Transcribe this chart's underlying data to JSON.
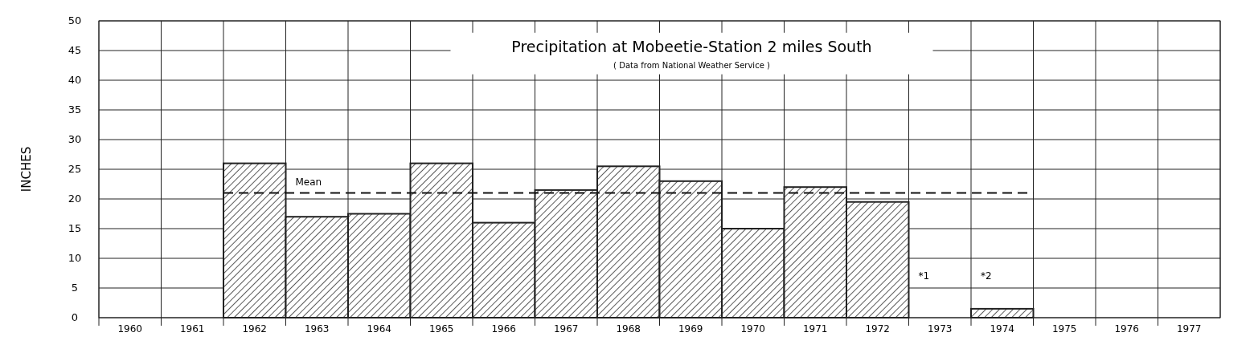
{
  "chart_data": {
    "type": "bar",
    "title": "Precipitation at Mobeetie-Station 2 miles South",
    "subtitle": "( Data from National Weather Service )",
    "ylabel": "INCHES",
    "categories": [
      "1960",
      "1961",
      "1962",
      "1963",
      "1964",
      "1965",
      "1966",
      "1967",
      "1968",
      "1969",
      "1970",
      "1971",
      "1972",
      "1973",
      "1974",
      "1975",
      "1976",
      "1977"
    ],
    "values": [
      null,
      null,
      26,
      17,
      17.5,
      26,
      16,
      21.5,
      25.5,
      23,
      15,
      22,
      19.5,
      0,
      1.5,
      null,
      null,
      null
    ],
    "color": "#222222",
    "ylim": [
      0,
      50
    ],
    "yticks": [
      0,
      5,
      10,
      15,
      20,
      25,
      30,
      35,
      40,
      45,
      50
    ],
    "grid": true,
    "ref_lines": [
      {
        "axis": "y",
        "value": 21,
        "label": "Mean",
        "line_style": "dashed"
      }
    ],
    "annotations": [
      "*1",
      "*2"
    ]
  }
}
